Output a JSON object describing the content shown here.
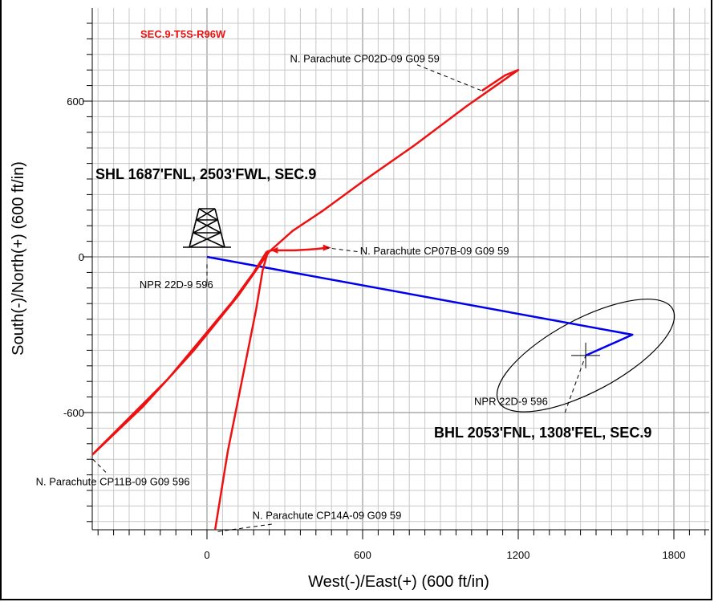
{
  "chart_data": {
    "type": "line",
    "title": "",
    "xlabel": "West(-)/East(+) (600 ft/in)",
    "ylabel": "South(-)/North(+) (600 ft/in)",
    "xlim": [
      -450,
      1950
    ],
    "ylim": [
      -1060,
      960
    ],
    "x_ticks": [
      0,
      600,
      1200,
      1800
    ],
    "y_ticks": [
      -600,
      0,
      600
    ],
    "grid": true,
    "colors": {
      "offset_wells": "#ee1111",
      "plan_well": "#0000ee",
      "grid": "#c8c8c8"
    },
    "section_label": "SEC.9-T5S-R96W",
    "shl_label": "SHL 1687'FNL, 2503'FWL, SEC.9",
    "bhl_label": "BHL 2053'FNL, 1308'FEL, SEC.9",
    "target_ellipse": {
      "center": [
        1460,
        -380
      ],
      "rx": 380,
      "ry": 140,
      "angle_deg": -28
    },
    "series": [
      {
        "name": "NPR 22D-9 596",
        "color": "#0000ee",
        "points": [
          [
            0,
            0
          ],
          [
            1640,
            -300
          ],
          [
            1460,
            -380
          ]
        ]
      },
      {
        "name": "N. Parachute CP02D-09 G09 59",
        "color": "#ee1111",
        "points": [
          [
            -450,
            -770
          ],
          [
            -250,
            -580
          ],
          [
            -50,
            -360
          ],
          [
            120,
            -150
          ],
          [
            240,
            20
          ],
          [
            330,
            100
          ],
          [
            450,
            180
          ],
          [
            600,
            290
          ],
          [
            800,
            430
          ],
          [
            1000,
            580
          ],
          [
            1100,
            650
          ],
          [
            1200,
            720
          ],
          [
            1150,
            700
          ],
          [
            1060,
            640
          ]
        ]
      },
      {
        "name": "N. Parachute CP07B-09 G09 59",
        "color": "#ee1111",
        "points": [
          [
            230,
            20
          ],
          [
            250,
            25
          ],
          [
            340,
            25
          ],
          [
            420,
            30
          ],
          [
            460,
            35
          ]
        ]
      },
      {
        "name": "N. Parachute CP11B-09 G09 596",
        "color": "#ee1111",
        "points": [
          [
            -450,
            -770
          ],
          [
            -300,
            -620
          ],
          [
            -150,
            -470
          ],
          [
            0,
            -290
          ],
          [
            100,
            -170
          ],
          [
            180,
            -60
          ],
          [
            230,
            20
          ]
        ]
      },
      {
        "name": "N. Parachute CP14A-09 G09 59",
        "color": "#ee1111",
        "points": [
          [
            30,
            -1060
          ],
          [
            80,
            -750
          ],
          [
            140,
            -450
          ],
          [
            190,
            -200
          ],
          [
            215,
            -50
          ],
          [
            235,
            20
          ]
        ]
      }
    ],
    "labels": [
      {
        "text": "N. Parachute CP02D-09 G09 59",
        "at": [
          320,
          750
        ],
        "leader_from": [
          810,
          740
        ],
        "leader_to": [
          1060,
          640
        ]
      },
      {
        "text": "N. Parachute CP07B-09 G09 59",
        "at": [
          590,
          10
        ],
        "leader_from": [
          580,
          20
        ],
        "leader_to": [
          460,
          35
        ]
      },
      {
        "text": "NPR 22D-9 596",
        "at": [
          -260,
          -120
        ],
        "leader_from": [
          0,
          -100
        ],
        "leader_to": [
          0,
          -20
        ]
      },
      {
        "text": "NPR 22D-9 596",
        "at": [
          1030,
          -570
        ],
        "leader_from": [
          1380,
          -600
        ],
        "leader_to": [
          1460,
          -380
        ]
      },
      {
        "text": "N. Parachute CP11B-09 G09 596",
        "at": [
          -660,
          -880
        ],
        "leader_from": [
          -390,
          -830
        ],
        "leader_to": [
          -450,
          -770
        ]
      },
      {
        "text": "N. Parachute CP14A-09 G09 59",
        "at": [
          175,
          -1010
        ],
        "leader_from": [
          250,
          -1030
        ],
        "leader_to": [
          30,
          -1060
        ]
      }
    ]
  }
}
